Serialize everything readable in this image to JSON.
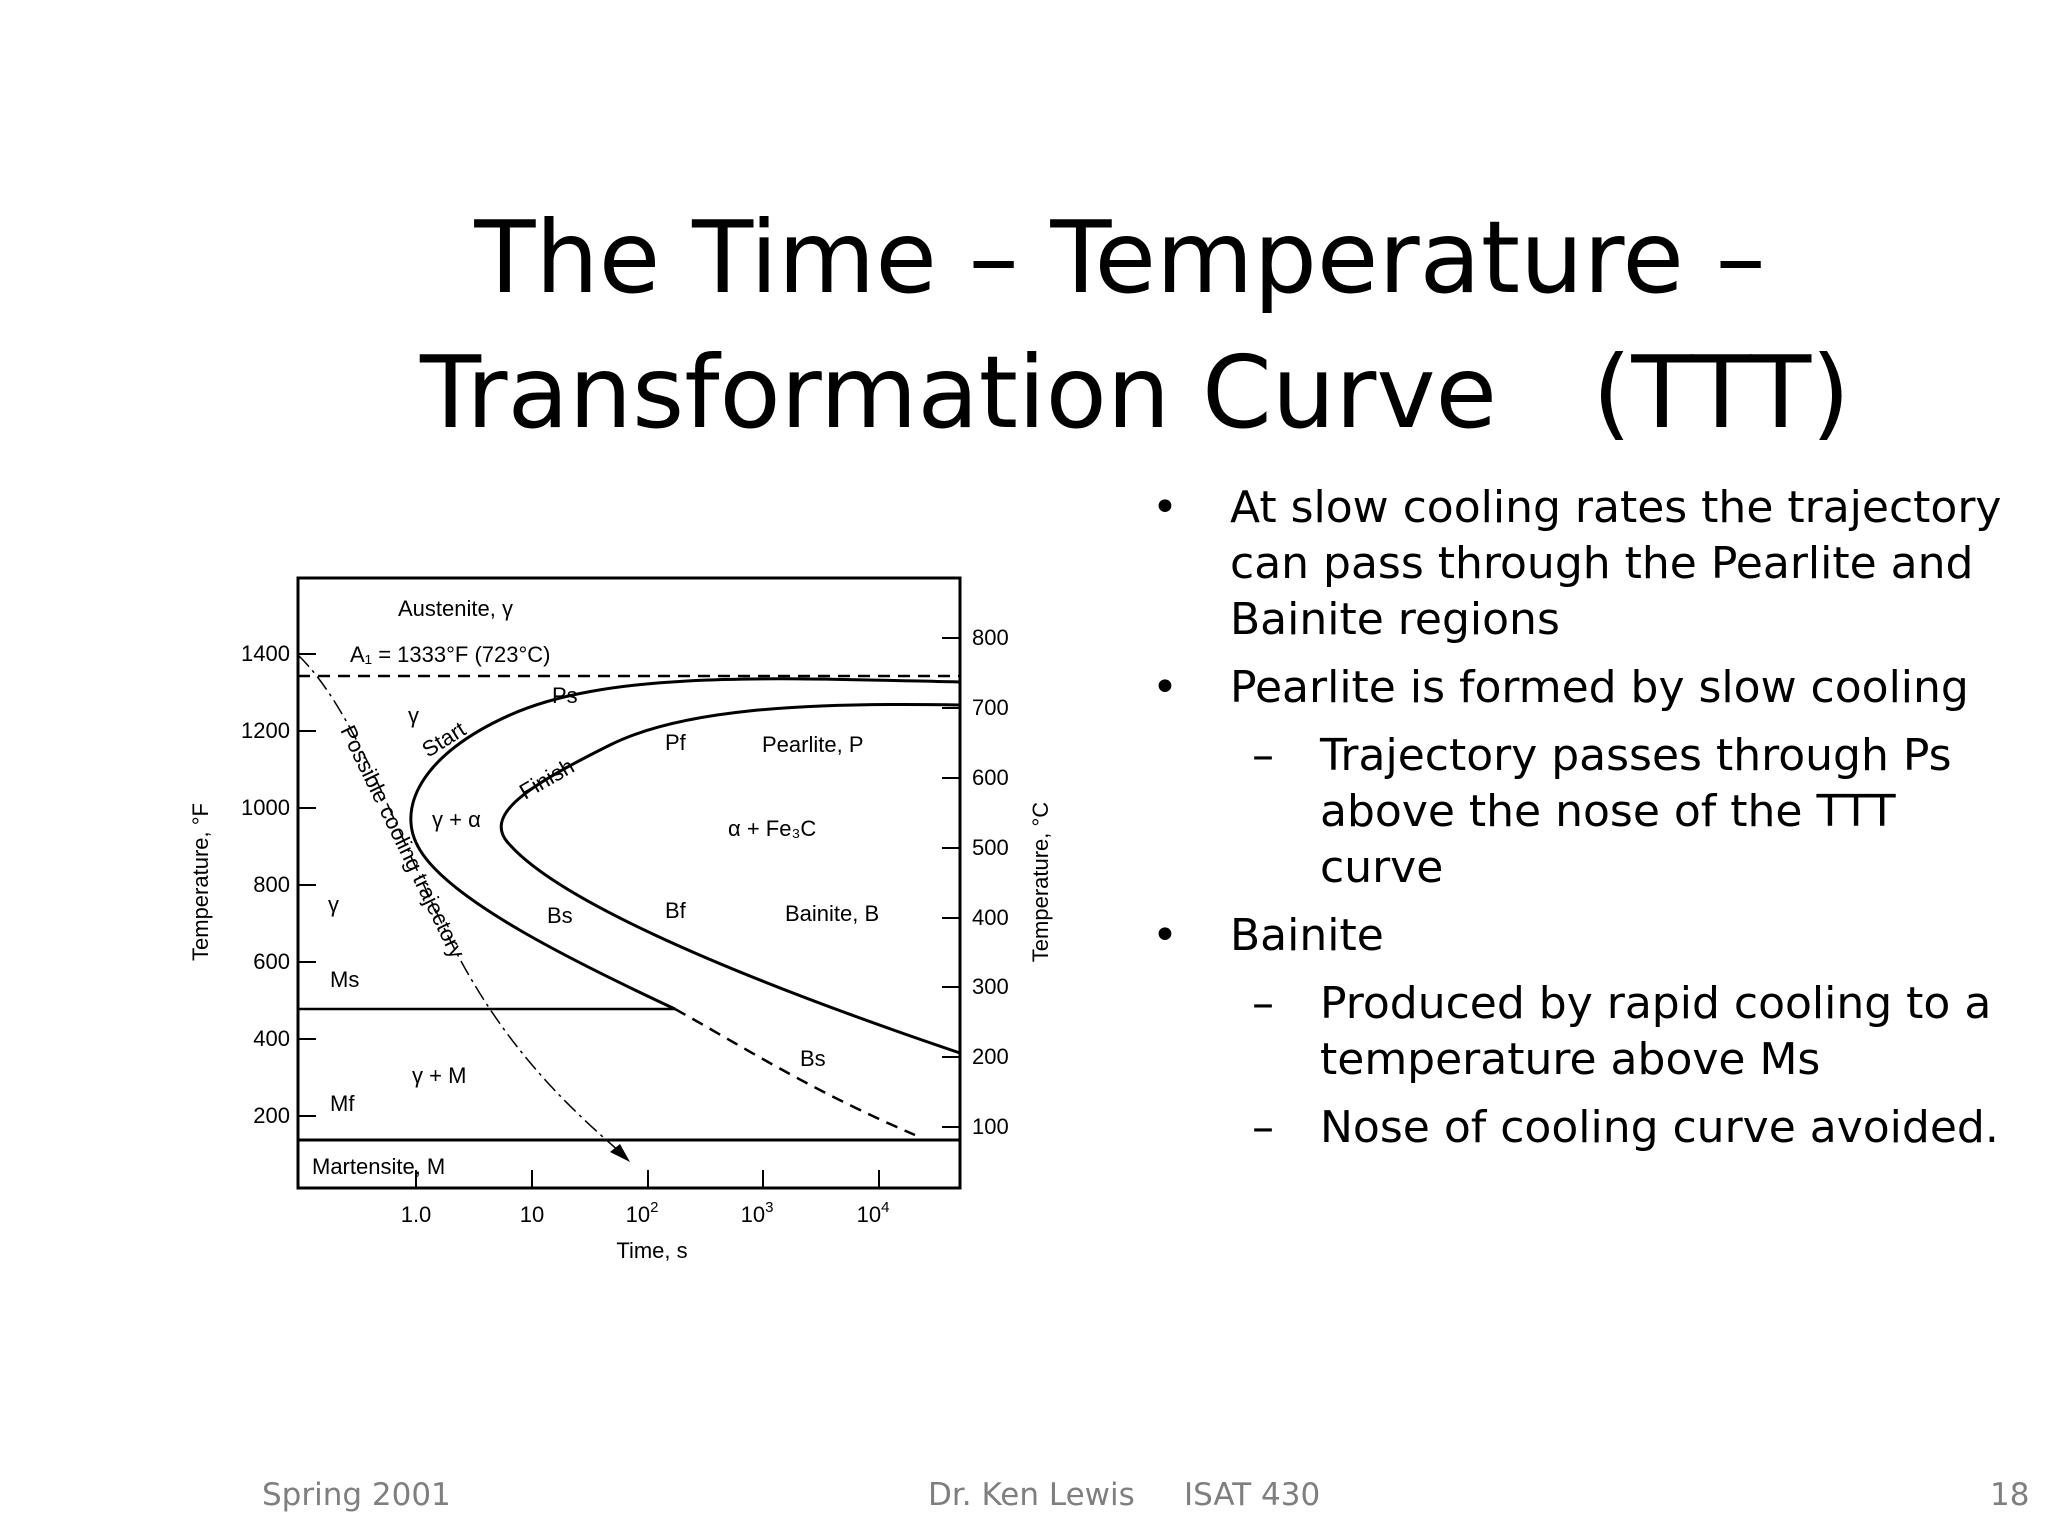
{
  "slide": {
    "title_line1": "The Time – Temperature –",
    "title_line2": "Transformation Curve   (TTT)",
    "bullets": [
      {
        "level": 1,
        "text": "At slow cooling rates the trajectory can pass through the Pearlite and Bainite regions"
      },
      {
        "level": 1,
        "text": "Pearlite is formed by slow cooling"
      },
      {
        "level": 2,
        "text": "Trajectory passes through Ps above the nose of the TTT curve"
      },
      {
        "level": 1,
        "text": "Bainite"
      },
      {
        "level": 2,
        "text": "Produced by rapid cooling to a temperature above Ms"
      },
      {
        "level": 2,
        "text": "Nose of cooling curve avoided."
      }
    ],
    "bullet_symbol": "•",
    "dash_symbol": "–"
  },
  "figure": {
    "ylabel_left": "Temperature, °F",
    "ylabel_right": "Temperature, °C",
    "xlabel": "Time, s",
    "yticks_left": [
      "1400",
      "1200",
      "1000",
      "800",
      "600",
      "400",
      "200"
    ],
    "yticks_right": [
      "800",
      "700",
      "600",
      "500",
      "400",
      "300",
      "200",
      "100"
    ],
    "xticks": [
      "1.0",
      "10",
      "10",
      "10",
      "10"
    ],
    "xtick_exponents": [
      "",
      "",
      "2",
      "3",
      "4"
    ],
    "labels": {
      "austenite": "Austenite, γ",
      "a1": "A₁ = 1333°F (723°C)",
      "gamma_top": "γ",
      "ps": "Ps",
      "start": "Start",
      "pf": "Pf",
      "pearlite": "Pearlite, P",
      "finish": "Finish",
      "gamma_alpha": "γ + α",
      "alpha_fe3c": "α + Fe₃C",
      "gamma_left": "γ",
      "bs": "Bs",
      "bf": "Bf",
      "bainite": "Bainite, B",
      "ms": "Ms",
      "bs_lower": "Bs",
      "gamma_m": "γ + M",
      "mf": "Mf",
      "martensite": "Martensite, M",
      "trajectory": "Possible cooling trajectory"
    }
  },
  "footer": {
    "left": "Spring 2001",
    "center": "Dr. Ken Lewis     ISAT 430",
    "right": "18"
  }
}
